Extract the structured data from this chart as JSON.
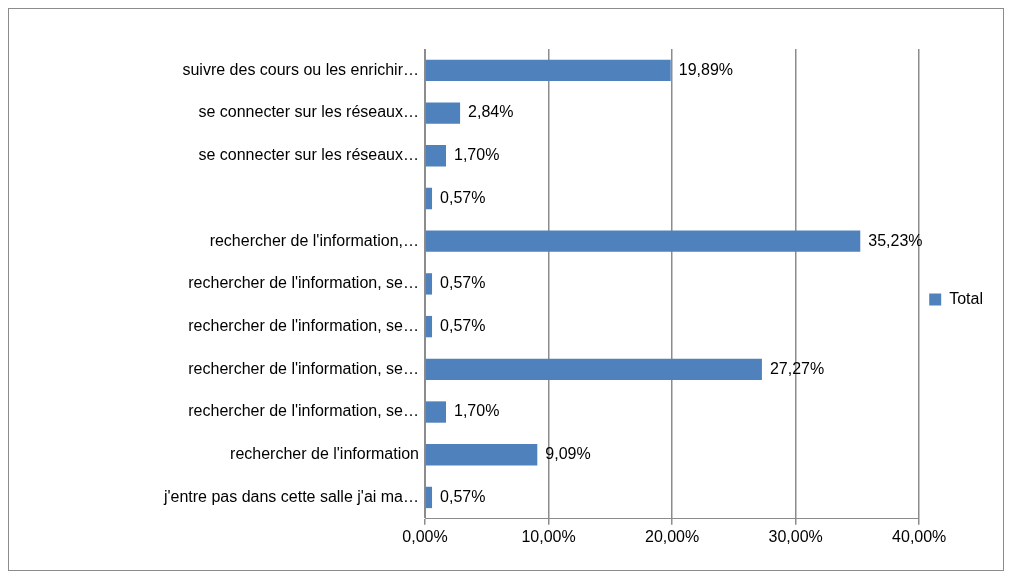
{
  "chart_data": {
    "type": "bar",
    "orientation": "horizontal",
    "categories": [
      "suivre des cours ou les enrichir…",
      "se connecter sur les réseaux…",
      "se connecter sur les réseaux…",
      null,
      "rechercher de l'information,…",
      "rechercher de l'information, se…",
      "rechercher de l'information, se…",
      "rechercher de l'information, se…",
      "rechercher de l'information, se…",
      "rechercher de l'information",
      "j'entre pas dans cette salle j'ai ma…"
    ],
    "series": [
      {
        "name": "Total",
        "color": "#4f81bd",
        "values": [
          19.89,
          2.84,
          1.7,
          0.57,
          35.23,
          0.57,
          0.57,
          27.27,
          1.7,
          9.09,
          0.57
        ],
        "value_labels": [
          "19,89%",
          "2,84%",
          "1,70%",
          "0,57%",
          "35,23%",
          "0,57%",
          "0,57%",
          "27,27%",
          "1,70%",
          "9,09%",
          "0,57%"
        ]
      }
    ],
    "xlim": [
      0,
      40
    ],
    "xticks": [
      {
        "value": 0,
        "label": "0,00%"
      },
      {
        "value": 10,
        "label": "10,00%"
      },
      {
        "value": 20,
        "label": "20,00%"
      },
      {
        "value": 30,
        "label": "30,00%"
      },
      {
        "value": 40,
        "label": "40,00%"
      }
    ],
    "grid": "x",
    "legend": "right"
  }
}
